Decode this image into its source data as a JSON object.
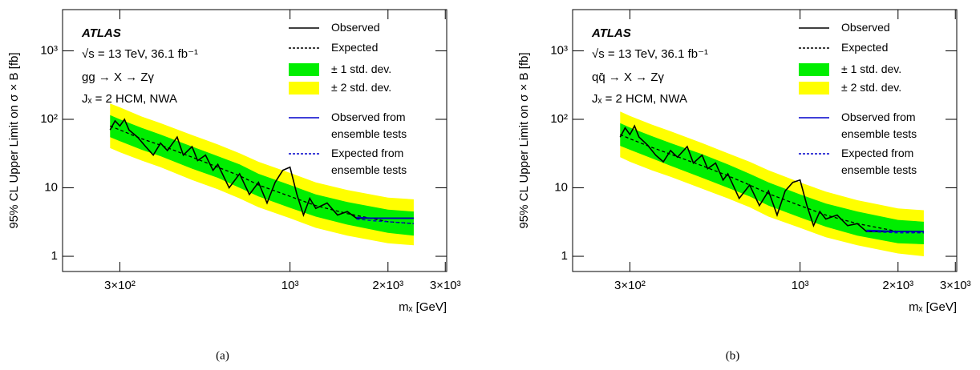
{
  "chart_data": [
    {
      "type": "line",
      "caption": "(a)",
      "log_x": true,
      "log_y": true,
      "annotations": [
        "ATLAS",
        "√s = 13 TeV, 36.1 fb⁻¹",
        "gg → X → Zγ",
        "Jₓ = 2 HCM, NWA"
      ],
      "xlabel": "mₓ [GeV]",
      "ylabel": "95% CL Upper Limit on σ × B [fb]",
      "xlim": [
        200,
        3030
      ],
      "ylim": [
        0.6,
        4000
      ],
      "xticks": [
        {
          "value": 300,
          "label": "3×10²"
        },
        {
          "value": 1000,
          "label": "10³"
        },
        {
          "value": 2000,
          "label": "2×10³"
        },
        {
          "value": 3000,
          "label": "3×10³"
        }
      ],
      "yticks": [
        1,
        10,
        {
          "value": 100,
          "label": "10²"
        },
        {
          "value": 1000,
          "label": "10³"
        }
      ],
      "series": [
        {
          "name": "Observed",
          "color": "#000000",
          "style": "solid",
          "x": [
            280,
            290,
            300,
            310,
            320,
            340,
            360,
            380,
            400,
            420,
            450,
            470,
            500,
            520,
            550,
            580,
            600,
            650,
            700,
            750,
            800,
            850,
            900,
            950,
            1000,
            1050,
            1100,
            1150,
            1200,
            1300,
            1400,
            1500,
            1600,
            2000,
            2400
          ],
          "values": [
            70,
            95,
            80,
            100,
            70,
            55,
            40,
            30,
            45,
            35,
            55,
            30,
            40,
            25,
            30,
            18,
            22,
            10,
            16,
            8,
            12,
            6,
            12,
            18,
            20,
            8,
            4,
            7,
            5,
            6,
            4,
            4.5,
            3.6,
            3.6,
            3.6
          ]
        },
        {
          "name": "Expected",
          "color": "#000000",
          "style": "dashed",
          "x": [
            280,
            300,
            350,
            400,
            500,
            600,
            700,
            800,
            1000,
            1200,
            1500,
            2000,
            2400
          ],
          "values": [
            80,
            70,
            52,
            42,
            28,
            20,
            15,
            11,
            7.5,
            5.5,
            4.2,
            3.2,
            3.0
          ]
        },
        {
          "name": "± 1 std. dev.",
          "color": "#00ee00",
          "style": "band",
          "x": [
            280,
            300,
            350,
            400,
            500,
            600,
            700,
            800,
            1000,
            1200,
            1500,
            2000,
            2400
          ],
          "lower": [
            55,
            48,
            36,
            29,
            19,
            14,
            10,
            7.5,
            5.1,
            3.8,
            2.9,
            2.2,
            2.0
          ],
          "upper": [
            115,
            100,
            75,
            60,
            40,
            29,
            22,
            16,
            11,
            8,
            6.2,
            4.8,
            4.5
          ]
        },
        {
          "name": "± 2 std. dev.",
          "color": "#ffff00",
          "style": "band",
          "x": [
            280,
            300,
            350,
            400,
            500,
            600,
            700,
            800,
            1000,
            1200,
            1500,
            2000,
            2400
          ],
          "lower": [
            38,
            33,
            25,
            20,
            13,
            9.5,
            7,
            5.2,
            3.6,
            2.6,
            2,
            1.55,
            1.45
          ],
          "upper": [
            170,
            150,
            110,
            88,
            59,
            43,
            32,
            24,
            16.5,
            12,
            9.3,
            7.2,
            6.8
          ]
        },
        {
          "name": "Observed from ensemble tests",
          "color": "#0000cc",
          "style": "solid",
          "x": [
            1600,
            1800,
            2000,
            2200,
            2400
          ],
          "values": [
            3.7,
            3.6,
            3.6,
            3.6,
            3.6
          ]
        },
        {
          "name": "Expected from ensemble tests",
          "color": "#0000cc",
          "style": "dashed",
          "x": [
            1600,
            1800,
            2000,
            2200,
            2400
          ],
          "values": [
            3.5,
            3.3,
            3.2,
            3.1,
            3.0
          ]
        }
      ]
    },
    {
      "type": "line",
      "caption": "(b)",
      "log_x": true,
      "log_y": true,
      "annotations": [
        "ATLAS",
        "√s = 13 TeV, 36.1 fb⁻¹",
        "qq̄ → X → Zγ",
        "Jₓ = 2 HCM, NWA"
      ],
      "xlabel": "mₓ [GeV]",
      "ylabel": "95% CL Upper Limit on σ × B [fb]",
      "xlim": [
        200,
        3030
      ],
      "ylim": [
        0.6,
        4000
      ],
      "xticks": [
        {
          "value": 300,
          "label": "3×10²"
        },
        {
          "value": 1000,
          "label": "10³"
        },
        {
          "value": 2000,
          "label": "2×10³"
        },
        {
          "value": 3000,
          "label": "3×10³"
        }
      ],
      "yticks": [
        1,
        10,
        {
          "value": 100,
          "label": "10²"
        },
        {
          "value": 1000,
          "label": "10³"
        }
      ],
      "series": [
        {
          "name": "Observed",
          "color": "#000000",
          "style": "solid",
          "x": [
            280,
            290,
            300,
            310,
            320,
            340,
            360,
            380,
            400,
            420,
            450,
            470,
            500,
            520,
            550,
            580,
            600,
            650,
            700,
            750,
            800,
            850,
            900,
            950,
            1000,
            1050,
            1100,
            1150,
            1200,
            1300,
            1400,
            1500,
            1600,
            2000,
            2400
          ],
          "values": [
            55,
            75,
            60,
            80,
            55,
            42,
            30,
            24,
            35,
            28,
            40,
            23,
            30,
            19,
            23,
            13,
            16,
            7,
            11,
            5.5,
            9,
            4,
            9,
            12,
            13,
            5.5,
            2.8,
            4.5,
            3.5,
            4,
            2.8,
            3,
            2.3,
            2.3,
            2.3
          ]
        },
        {
          "name": "Expected",
          "color": "#000000",
          "style": "dashed",
          "x": [
            280,
            300,
            350,
            400,
            500,
            600,
            700,
            800,
            1000,
            1200,
            1500,
            2000,
            2400
          ],
          "values": [
            60,
            52,
            39,
            31,
            21,
            15,
            11,
            8.2,
            5.5,
            4,
            3,
            2.3,
            2.2
          ]
        },
        {
          "name": "± 1 std. dev.",
          "color": "#00ee00",
          "style": "band",
          "x": [
            280,
            300,
            350,
            400,
            500,
            600,
            700,
            800,
            1000,
            1200,
            1500,
            2000,
            2400
          ],
          "lower": [
            41,
            36,
            27,
            21,
            14,
            10,
            7.5,
            5.5,
            3.7,
            2.7,
            2,
            1.55,
            1.5
          ],
          "upper": [
            88,
            76,
            57,
            45,
            31,
            22,
            16,
            12,
            8,
            5.9,
            4.5,
            3.4,
            3.2
          ]
        },
        {
          "name": "± 2 std. dev.",
          "color": "#ffff00",
          "style": "band",
          "x": [
            280,
            300,
            350,
            400,
            500,
            600,
            700,
            800,
            1000,
            1200,
            1500,
            2000,
            2400
          ],
          "lower": [
            28,
            24,
            18,
            14.5,
            9.7,
            7,
            5.2,
            3.8,
            2.6,
            1.9,
            1.45,
            1.1,
            1.0
          ],
          "upper": [
            130,
            112,
            84,
            67,
            45,
            32,
            24,
            18,
            12,
            8.8,
            6.6,
            5,
            4.7
          ]
        },
        {
          "name": "Observed from ensemble tests",
          "color": "#0000cc",
          "style": "solid",
          "x": [
            1600,
            1800,
            2000,
            2200,
            2400
          ],
          "values": [
            2.4,
            2.35,
            2.3,
            2.3,
            2.3
          ]
        },
        {
          "name": "Expected from ensemble tests",
          "color": "#0000cc",
          "style": "dashed",
          "x": [
            1600,
            1800,
            2000,
            2200,
            2400
          ],
          "values": [
            2.3,
            2.25,
            2.2,
            2.2,
            2.2
          ]
        }
      ]
    }
  ]
}
